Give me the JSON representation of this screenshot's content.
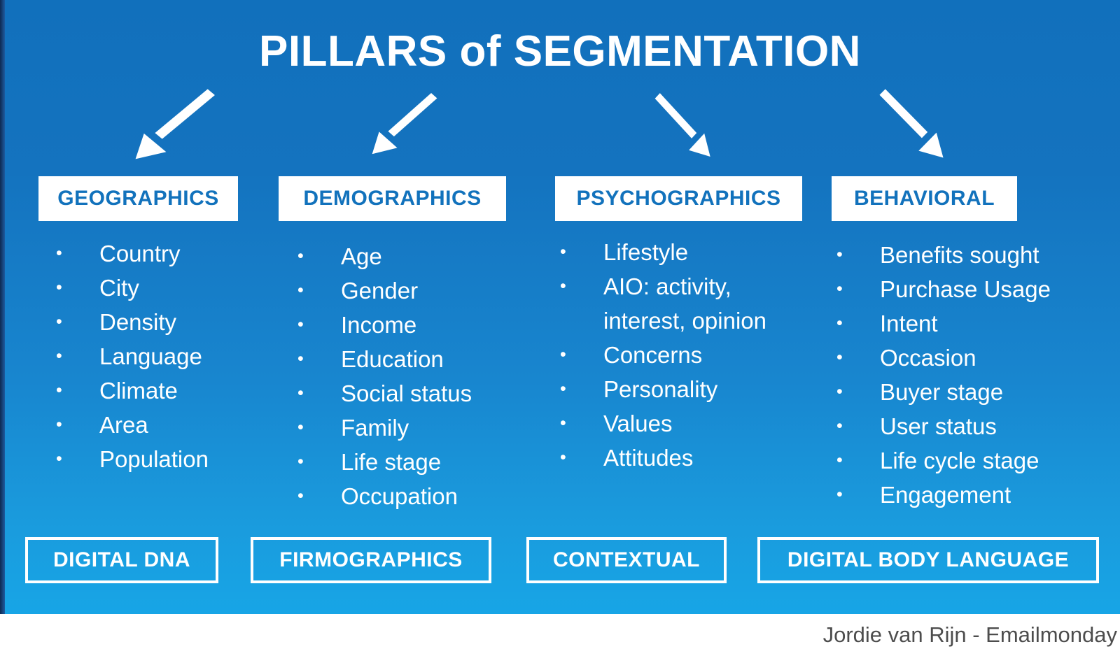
{
  "title": "PILLARS of SEGMENTATION",
  "attribution": "Jordie van Rijn - Emailmonday",
  "bullet_char": "•",
  "colors": {
    "background_top": "#1170bc",
    "background_bottom": "#17a5e6",
    "header_text_blue": "#1272bc",
    "edge_strip_navy": "#0e2a52",
    "footer_text_gray": "#4d4d4d",
    "white": "#ffffff"
  },
  "columns": [
    {
      "id": "geographics",
      "header": "GEOGRAPHICS",
      "arrow": "down-left",
      "items": [
        "Country",
        "City",
        "Density",
        "Language",
        "Climate",
        "Area",
        "Population"
      ],
      "footer_box": "DIGITAL DNA"
    },
    {
      "id": "demographics",
      "header": "DEMOGRAPHICS",
      "arrow": "down-left",
      "items": [
        "Age",
        "Gender",
        "Income",
        "Education",
        "Social status",
        "Family",
        "Life stage",
        "Occupation"
      ],
      "footer_box": "FIRMOGRAPHICS"
    },
    {
      "id": "psychographics",
      "header": "PSYCHOGRAPHICS",
      "arrow": "down-right",
      "items": [
        "Lifestyle",
        "AIO: activity, interest, opinion",
        "Concerns",
        "Personality",
        "Values",
        "Attitudes"
      ],
      "footer_box": "CONTEXTUAL"
    },
    {
      "id": "behavioral",
      "header": "BEHAVIORAL",
      "arrow": "down-right",
      "items": [
        "Benefits sought",
        "Purchase Usage",
        "Intent",
        "Occasion",
        "Buyer stage",
        "User status",
        "Life cycle stage",
        "Engagement"
      ],
      "footer_box": "DIGITAL BODY LANGUAGE"
    }
  ]
}
